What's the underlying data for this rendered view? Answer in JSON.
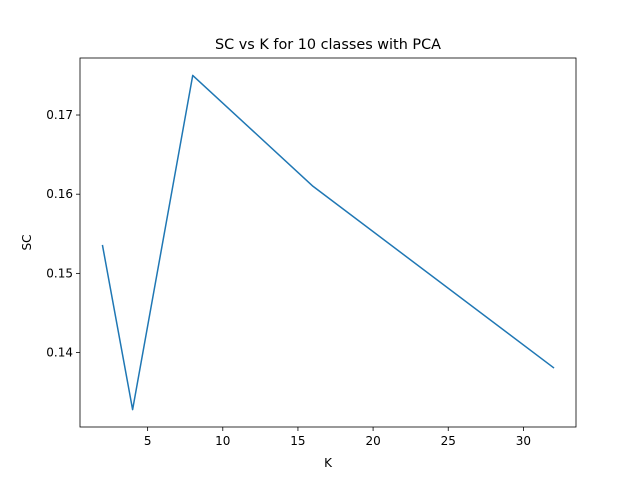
{
  "chart_data": {
    "type": "line",
    "title": "SC vs K for 10 classes with PCA",
    "xlabel": "K",
    "ylabel": "SC",
    "x": [
      2,
      4,
      8,
      16,
      32
    ],
    "series": [
      {
        "values": [
          0.1535,
          0.1328,
          0.175,
          0.161,
          0.1381
        ],
        "color": "#1f77b4"
      }
    ],
    "xlim": [
      0.5,
      33.5
    ],
    "ylim": [
      0.1306,
      0.1772
    ],
    "xticks": [
      5,
      10,
      15,
      20,
      25,
      30
    ],
    "xtick_labels": [
      "5",
      "10",
      "15",
      "20",
      "25",
      "30"
    ],
    "yticks": [
      0.14,
      0.15,
      0.16,
      0.17
    ],
    "ytick_labels": [
      "0.14",
      "0.15",
      "0.16",
      "0.17"
    ],
    "grid": false,
    "legend": "none"
  }
}
